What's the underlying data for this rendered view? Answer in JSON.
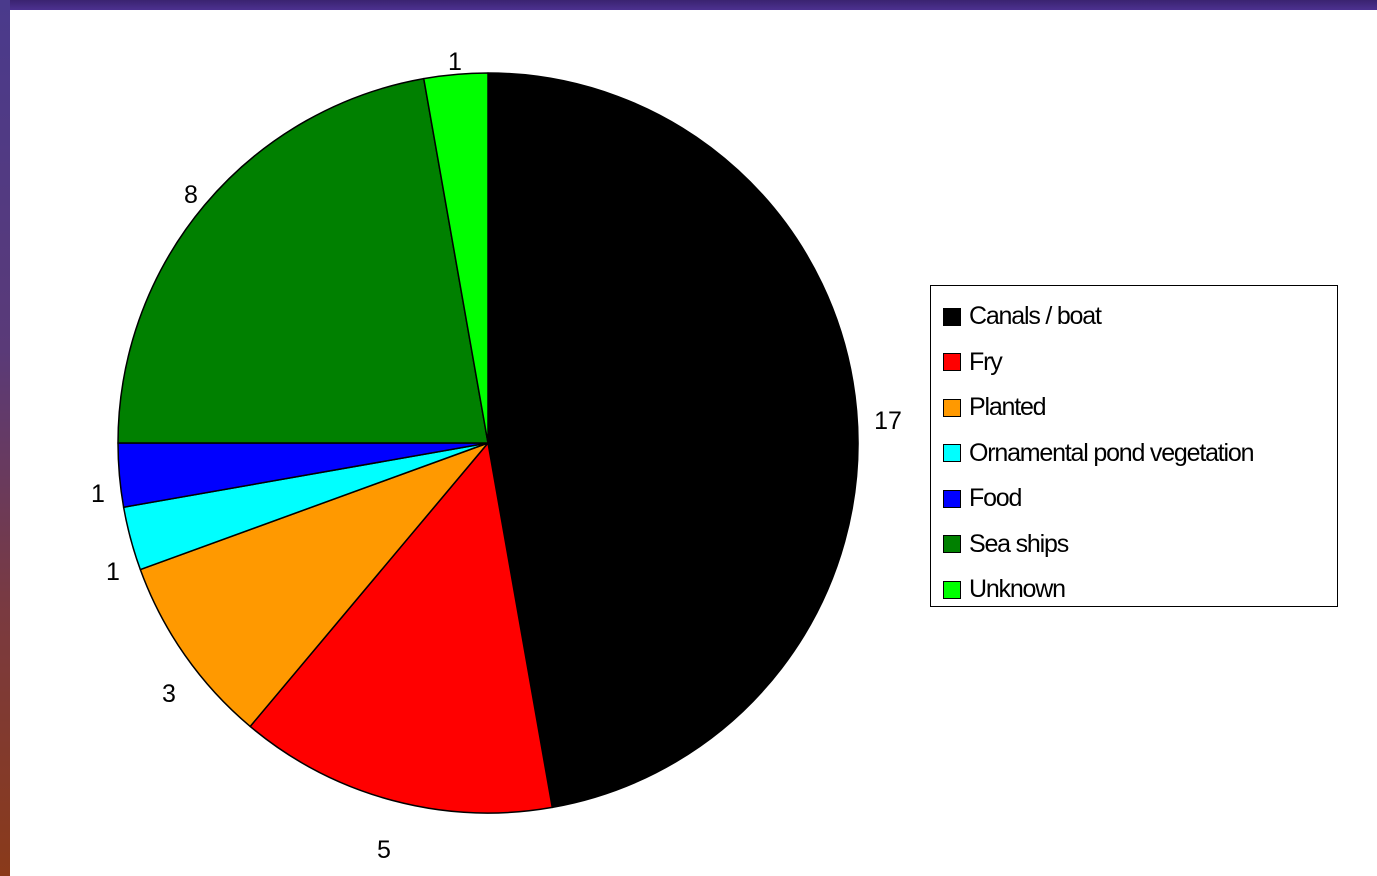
{
  "chart_data": {
    "type": "pie",
    "title": "",
    "slices": [
      {
        "label": "Canals / boat",
        "value": 17,
        "color": "#000000"
      },
      {
        "label": "Fry",
        "value": 5,
        "color": "#ff0000"
      },
      {
        "label": "Planted",
        "value": 3,
        "color": "#ff9900"
      },
      {
        "label": "Ornamental pond vegetation",
        "value": 1,
        "color": "#00ffff"
      },
      {
        "label": "Food",
        "value": 1,
        "color": "#0000ff"
      },
      {
        "label": "Sea ships",
        "value": 8,
        "color": "#008000"
      },
      {
        "label": "Unknown",
        "value": 1,
        "color": "#00ff00"
      }
    ],
    "data_labels": [
      "17",
      "5",
      "3",
      "1",
      "1",
      "8",
      "1"
    ],
    "start_angle": "12 o'clock",
    "direction": "clockwise",
    "legend_position": "right"
  },
  "theme": {
    "frame_color": "#4a2b82",
    "plot_background": "#ffffff"
  }
}
